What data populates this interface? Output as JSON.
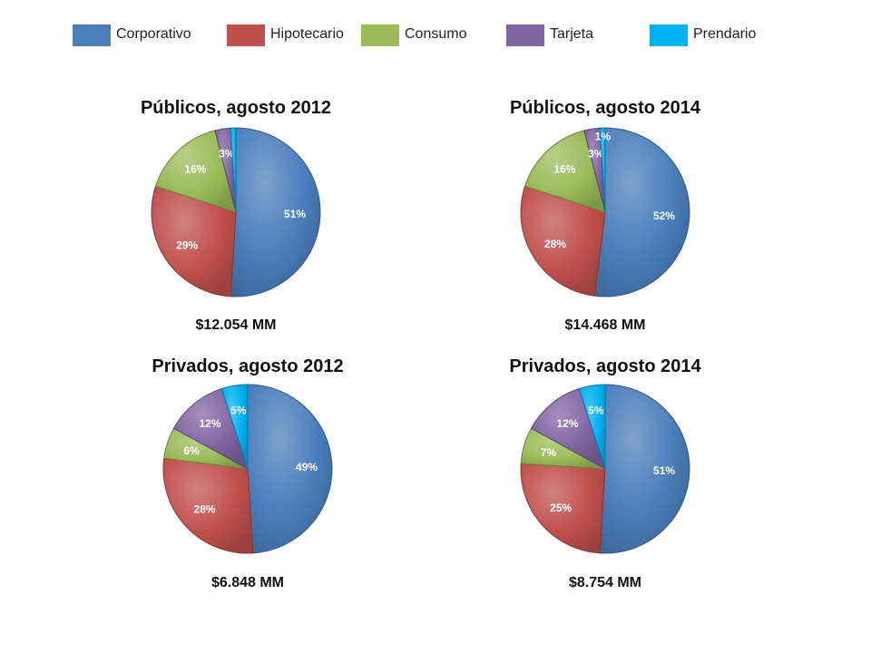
{
  "legend": [
    {
      "label": "Corporativo",
      "color": "#4a7ebb"
    },
    {
      "label": "Hipotecario",
      "color": "#c0504d"
    },
    {
      "label": "Consumo",
      "color": "#9bbb59"
    },
    {
      "label": "Tarjeta",
      "color": "#8064a2"
    },
    {
      "label": "Prendario",
      "color": "#00b0f0"
    }
  ],
  "chart_data": [
    {
      "type": "pie",
      "title": "Públicos, agosto 2012",
      "total_label": "$12.054 MM",
      "slices": [
        {
          "category": "Corporativo",
          "value": 51,
          "label": "51%"
        },
        {
          "category": "Hipotecario",
          "value": 29,
          "label": "29%"
        },
        {
          "category": "Consumo",
          "value": 16,
          "label": "16%"
        },
        {
          "category": "Tarjeta",
          "value": 3,
          "label": "3%"
        },
        {
          "category": "Prendario",
          "value": 1,
          "label": ""
        }
      ]
    },
    {
      "type": "pie",
      "title": "Públicos, agosto 2014",
      "total_label": "$14.468 MM",
      "slices": [
        {
          "category": "Corporativo",
          "value": 52,
          "label": "52%"
        },
        {
          "category": "Hipotecario",
          "value": 28,
          "label": "28%"
        },
        {
          "category": "Consumo",
          "value": 16,
          "label": "16%"
        },
        {
          "category": "Tarjeta",
          "value": 3,
          "label": "3%"
        },
        {
          "category": "Prendario",
          "value": 1,
          "label": "1%"
        }
      ]
    },
    {
      "type": "pie",
      "title": "Privados, agosto 2012",
      "total_label": "$6.848 MM",
      "slices": [
        {
          "category": "Corporativo",
          "value": 49,
          "label": "49%"
        },
        {
          "category": "Hipotecario",
          "value": 28,
          "label": "28%"
        },
        {
          "category": "Consumo",
          "value": 6,
          "label": "6%"
        },
        {
          "category": "Tarjeta",
          "value": 12,
          "label": "12%"
        },
        {
          "category": "Prendario",
          "value": 5,
          "label": "5%"
        }
      ]
    },
    {
      "type": "pie",
      "title": "Privados, agosto 2014",
      "total_label": "$8.754 MM",
      "slices": [
        {
          "category": "Corporativo",
          "value": 51,
          "label": "51%"
        },
        {
          "category": "Hipotecario",
          "value": 25,
          "label": "25%"
        },
        {
          "category": "Consumo",
          "value": 7,
          "label": "7%"
        },
        {
          "category": "Tarjeta",
          "value": 12,
          "label": "12%"
        },
        {
          "category": "Prendario",
          "value": 5,
          "label": "5%"
        }
      ]
    }
  ]
}
